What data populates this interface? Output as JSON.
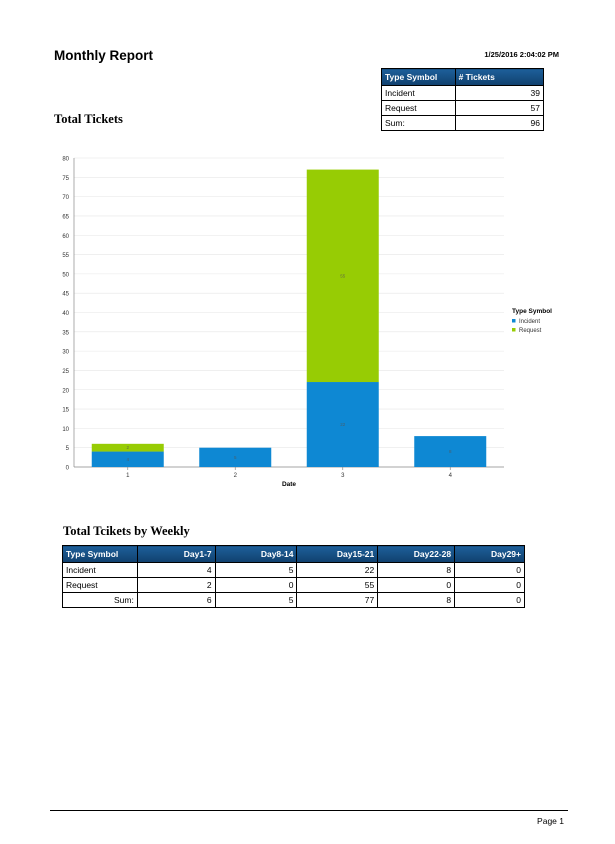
{
  "header": {
    "title": "Monthly Report",
    "timestamp": "1/25/2016 2:04:02 PM"
  },
  "summary_table": {
    "headers": [
      "Type Symbol",
      "# Tickets"
    ],
    "rows": [
      {
        "label": "Incident",
        "value": "39"
      },
      {
        "label": "Request",
        "value": "57"
      },
      {
        "label": "Sum:",
        "value": "96"
      }
    ]
  },
  "sections": {
    "total_tickets": "Total Tickets",
    "weekly": "Total Tcikets by Weekly"
  },
  "chart_data": {
    "type": "bar",
    "stacked": true,
    "categories": [
      "1",
      "2",
      "3",
      "4"
    ],
    "series": [
      {
        "name": "Incident",
        "values": [
          4,
          5,
          22,
          8
        ],
        "color": "#0e88d3"
      },
      {
        "name": "Request",
        "values": [
          2,
          0,
          55,
          0
        ],
        "color": "#97cc04"
      }
    ],
    "xlabel": "Date",
    "ylabel": "",
    "ylim": [
      0,
      80
    ],
    "yticks": [
      0,
      5,
      10,
      15,
      20,
      25,
      30,
      35,
      40,
      45,
      50,
      55,
      60,
      65,
      70,
      75,
      80
    ],
    "legend_title": "Type Symbol",
    "legend_position": "right",
    "grid": true
  },
  "weekly_table": {
    "headers": [
      "Type Symbol",
      "Day1-7",
      "Day8-14",
      "Day15-21",
      "Day22-28",
      "Day29+"
    ],
    "rows": [
      {
        "label": "Incident",
        "values": [
          "4",
          "5",
          "22",
          "8",
          "0"
        ]
      },
      {
        "label": "Request",
        "values": [
          "2",
          "0",
          "55",
          "0",
          "0"
        ]
      },
      {
        "label": "Sum:",
        "values": [
          "6",
          "5",
          "77",
          "8",
          "0"
        ]
      }
    ]
  },
  "footer": {
    "page": "Page 1"
  }
}
